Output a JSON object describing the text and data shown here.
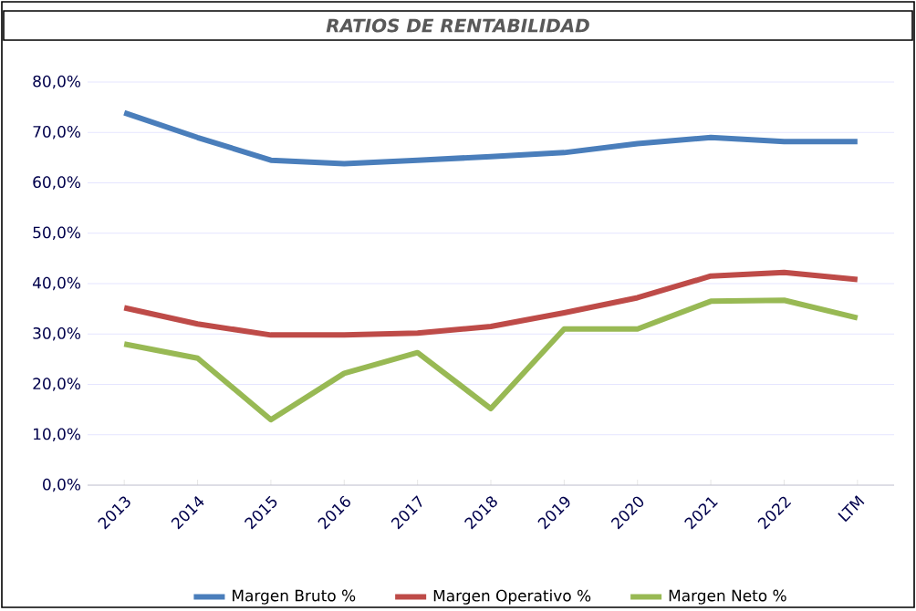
{
  "chart_data": {
    "type": "line",
    "title": "RATIOS DE RENTABILIDAD",
    "categories": [
      "2013",
      "2014",
      "2015",
      "2016",
      "2017",
      "2018",
      "2019",
      "2020",
      "2021",
      "2022",
      "LTM"
    ],
    "series": [
      {
        "name": "Margen Bruto %",
        "color": "#4a7ebb",
        "values": [
          73.9,
          69.0,
          64.5,
          63.8,
          64.5,
          65.2,
          66.0,
          67.8,
          69.0,
          68.2,
          68.2
        ]
      },
      {
        "name": "Margen Operativo %",
        "color": "#be4b48",
        "values": [
          35.2,
          32.0,
          29.8,
          29.8,
          30.2,
          31.5,
          34.2,
          37.2,
          41.5,
          42.2,
          40.8
        ]
      },
      {
        "name": "Margen Neto %",
        "color": "#98b954",
        "values": [
          28.0,
          25.2,
          13.0,
          22.2,
          26.3,
          15.2,
          31.0,
          31.0,
          36.5,
          36.7,
          33.2
        ]
      }
    ],
    "ylim": [
      0,
      80
    ],
    "yticks": [
      {
        "value": 0,
        "label": "0,0%"
      },
      {
        "value": 10,
        "label": "10,0%"
      },
      {
        "value": 20,
        "label": "20,0%"
      },
      {
        "value": 30,
        "label": "30,0%"
      },
      {
        "value": 40,
        "label": "40,0%"
      },
      {
        "value": 50,
        "label": "50,0%"
      },
      {
        "value": 60,
        "label": "60,0%"
      },
      {
        "value": 70,
        "label": "70,0%"
      },
      {
        "value": 80,
        "label": "80,0%"
      }
    ],
    "grid": "y",
    "legend": "bottom",
    "marker": "none",
    "line_style": "solid"
  }
}
